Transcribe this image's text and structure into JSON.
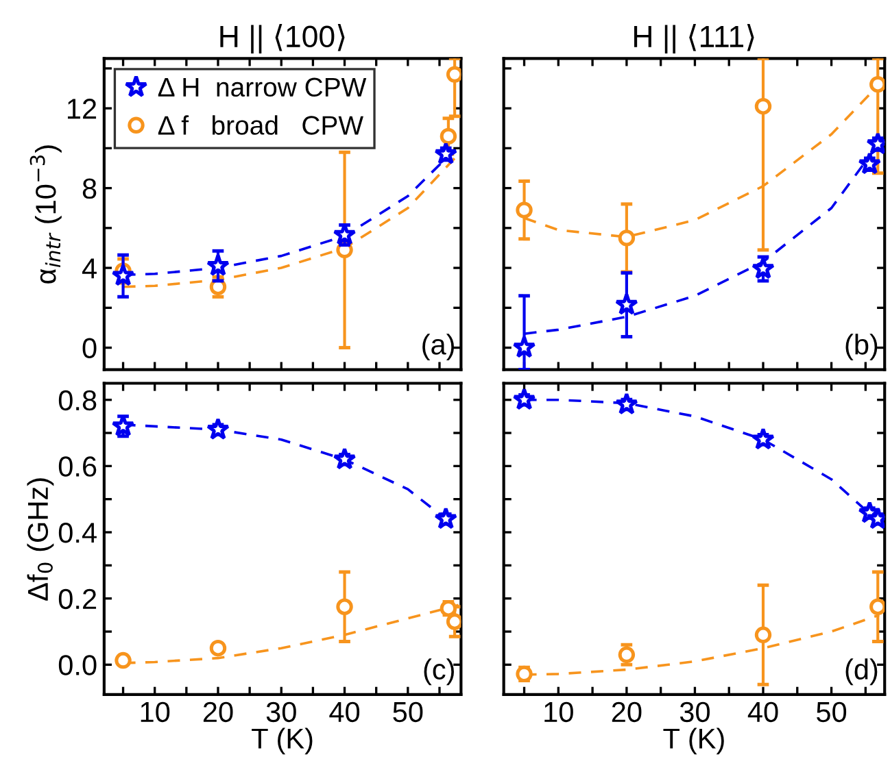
{
  "chart_data": [
    {
      "type": "scatter",
      "title": "H || ⟨100⟩",
      "ylabel": "α$_{intr}$ (10$^{−3}$)",
      "xlim": [
        2,
        58.4
      ],
      "ylim": [
        -1.1,
        14.5
      ],
      "xticks": [
        {
          "value": 5,
          "label": null
        },
        {
          "value": 10,
          "label": null
        },
        {
          "value": 15,
          "label": null
        },
        {
          "value": 20,
          "label": null
        },
        {
          "value": 25,
          "label": null
        },
        {
          "value": 30,
          "label": null
        },
        {
          "value": 35,
          "label": null
        },
        {
          "value": 40,
          "label": null
        },
        {
          "value": 45,
          "label": null
        },
        {
          "value": 50,
          "label": null
        },
        {
          "value": 55,
          "label": null
        }
      ],
      "yticks": [
        0,
        {
          "value": 2,
          "label": null
        },
        4,
        {
          "value": 6,
          "label": null
        },
        8,
        {
          "value": 10,
          "label": null
        },
        12,
        {
          "value": 14,
          "label": null
        }
      ],
      "tick_labels": "y",
      "legend": "top left",
      "annotations": [
        {
          "text": "(a)"
        }
      ],
      "series": [
        {
          "type": "line",
          "color": "#0000ee",
          "line_style": "dashed",
          "marker": "none",
          "x": [
            5,
            10,
            20,
            30,
            40,
            50,
            57
          ],
          "values": [
            3.65,
            3.7,
            4.0,
            4.6,
            5.6,
            7.6,
            9.8
          ]
        },
        {
          "type": "line",
          "color": "#f7941d",
          "line_style": "dashed",
          "marker": "none",
          "x": [
            5,
            10,
            20,
            30,
            40,
            50,
            58
          ],
          "values": [
            3.05,
            3.1,
            3.4,
            4.0,
            5.0,
            7.0,
            9.7
          ]
        },
        {
          "name": "Δ H  narrow CPW",
          "color": "#0000ee",
          "marker": "star",
          "x": [
            5,
            20,
            40,
            56
          ],
          "values": [
            3.6,
            4.1,
            5.65,
            9.7
          ],
          "errors": [
            1.05,
            0.75,
            0.5,
            0.3
          ]
        },
        {
          "name": "Δ f   broad   CPW",
          "color": "#f7941d",
          "marker": "circle",
          "x": [
            5,
            20,
            40,
            56.4,
            57.4
          ],
          "values": [
            3.85,
            3.05,
            4.9,
            10.6,
            13.7
          ],
          "errors": [
            0.6,
            0.5,
            4.9,
            0.9,
            [
              11.6,
              14.5
            ]
          ]
        }
      ]
    },
    {
      "type": "scatter",
      "title": "H || ⟨111⟩",
      "xlim": [
        2,
        57.8
      ],
      "ylim": [
        -1.1,
        14.5
      ],
      "xticks": [
        {
          "value": 5,
          "label": null
        },
        {
          "value": 10,
          "label": null
        },
        {
          "value": 15,
          "label": null
        },
        {
          "value": 20,
          "label": null
        },
        {
          "value": 25,
          "label": null
        },
        {
          "value": 30,
          "label": null
        },
        {
          "value": 35,
          "label": null
        },
        {
          "value": 40,
          "label": null
        },
        {
          "value": 45,
          "label": null
        },
        {
          "value": 50,
          "label": null
        },
        {
          "value": 55,
          "label": null
        }
      ],
      "yticks": [
        {
          "value": 0,
          "label": null
        },
        {
          "value": 2,
          "label": null
        },
        {
          "value": 4,
          "label": null
        },
        {
          "value": 6,
          "label": null
        },
        {
          "value": 8,
          "label": null
        },
        {
          "value": 10,
          "label": null
        },
        {
          "value": 12,
          "label": null
        },
        {
          "value": 14,
          "label": null
        }
      ],
      "tick_labels": false,
      "annotations": [
        {
          "text": "(b)"
        }
      ],
      "series": [
        {
          "type": "line",
          "color": "#0000ee",
          "line_style": "dashed",
          "marker": "none",
          "x": [
            5,
            10,
            20,
            30,
            40,
            50,
            57.5
          ],
          "values": [
            0.7,
            0.9,
            1.55,
            2.6,
            4.3,
            7.0,
            10.5
          ]
        },
        {
          "type": "line",
          "color": "#f7941d",
          "line_style": "dashed",
          "marker": "none",
          "x": [
            5,
            10,
            20,
            30,
            40,
            50,
            57
          ],
          "values": [
            6.5,
            5.9,
            5.55,
            6.4,
            8.1,
            10.7,
            13.2
          ]
        },
        {
          "color": "#0000ee",
          "marker": "star",
          "x": [
            5,
            20,
            40,
            55.6,
            56.8
          ],
          "values": [
            0.0,
            2.15,
            3.95,
            9.2,
            10.2
          ],
          "errors": [
            [
              -1.1,
              2.6
            ],
            1.6,
            0.6,
            0.3,
            0.3
          ]
        },
        {
          "color": "#f7941d",
          "marker": "circle",
          "x": [
            5,
            20,
            40,
            56.8
          ],
          "values": [
            6.9,
            5.5,
            12.1,
            13.2
          ],
          "errors": [
            1.45,
            1.7,
            [
              4.9,
              14.5
            ],
            [
              8.75,
              14.5
            ]
          ]
        }
      ]
    },
    {
      "type": "scatter",
      "xlabel": "T (K)",
      "ylabel": "Δf$_{0}$ (GHz)",
      "xlim": [
        2,
        58.4
      ],
      "ylim": [
        -0.09,
        0.85
      ],
      "xticks": [
        {
          "value": 5,
          "label": null
        },
        10,
        {
          "value": 15,
          "label": null
        },
        20,
        {
          "value": 25,
          "label": null
        },
        30,
        {
          "value": 35,
          "label": null
        },
        40,
        {
          "value": 45,
          "label": null
        },
        50,
        {
          "value": 55,
          "label": null
        }
      ],
      "yticks": [
        {
          "value": 0,
          "label": "0.0"
        },
        {
          "value": 0.1,
          "label": null
        },
        0.2,
        {
          "value": 0.3,
          "label": null
        },
        0.4,
        {
          "value": 0.5,
          "label": null
        },
        0.6,
        {
          "value": 0.7,
          "label": null
        },
        0.8
      ],
      "annotations": [
        {
          "text": "(c)"
        }
      ],
      "series": [
        {
          "type": "line",
          "color": "#0000ee",
          "line_style": "dashed",
          "marker": "none",
          "x": [
            5,
            10,
            20,
            30,
            40,
            50,
            56
          ],
          "values": [
            0.725,
            0.72,
            0.71,
            0.68,
            0.62,
            0.53,
            0.44
          ]
        },
        {
          "type": "line",
          "color": "#f7941d",
          "line_style": "dashed",
          "marker": "none",
          "x": [
            5,
            10,
            20,
            30,
            40,
            50,
            58
          ],
          "values": [
            0.005,
            0.008,
            0.02,
            0.05,
            0.09,
            0.14,
            0.18
          ]
        },
        {
          "color": "#0000ee",
          "marker": "star",
          "x": [
            5,
            20,
            40,
            56
          ],
          "values": [
            0.72,
            0.71,
            0.62,
            0.44
          ],
          "errors": [
            0.03,
            0.015,
            0.015,
            0.015
          ]
        },
        {
          "color": "#f7941d",
          "marker": "circle",
          "x": [
            5,
            20,
            40,
            56.4,
            57.4
          ],
          "values": [
            0.013,
            0.05,
            0.175,
            0.17,
            0.13
          ],
          "errors": [
            0.01,
            0.01,
            0.105,
            0.02,
            0.045
          ]
        }
      ]
    },
    {
      "type": "scatter",
      "xlabel": "T (K)",
      "xlim": [
        2,
        57.8
      ],
      "ylim": [
        -0.09,
        0.85
      ],
      "xticks": [
        {
          "value": 5,
          "label": null
        },
        10,
        {
          "value": 15,
          "label": null
        },
        20,
        {
          "value": 25,
          "label": null
        },
        30,
        {
          "value": 35,
          "label": null
        },
        40,
        {
          "value": 45,
          "label": null
        },
        50,
        {
          "value": 55,
          "label": null
        }
      ],
      "yticks": [
        {
          "value": 0,
          "label": null
        },
        {
          "value": 0.1,
          "label": null
        },
        {
          "value": 0.2,
          "label": null
        },
        {
          "value": 0.3,
          "label": null
        },
        {
          "value": 0.4,
          "label": null
        },
        {
          "value": 0.5,
          "label": null
        },
        {
          "value": 0.6,
          "label": null
        },
        {
          "value": 0.7,
          "label": null
        },
        {
          "value": 0.8,
          "label": null
        }
      ],
      "tick_labels": "x",
      "annotations": [
        {
          "text": "(d)"
        }
      ],
      "series": [
        {
          "type": "line",
          "color": "#0000ee",
          "line_style": "dashed",
          "marker": "none",
          "x": [
            5,
            10,
            20,
            30,
            40,
            50,
            57
          ],
          "values": [
            0.8,
            0.8,
            0.79,
            0.75,
            0.68,
            0.56,
            0.43
          ]
        },
        {
          "type": "line",
          "color": "#f7941d",
          "line_style": "dashed",
          "marker": "none",
          "x": [
            5,
            10,
            20,
            30,
            40,
            50,
            57
          ],
          "values": [
            -0.03,
            -0.028,
            -0.015,
            0.01,
            0.05,
            0.1,
            0.15
          ]
        },
        {
          "color": "#0000ee",
          "marker": "star",
          "x": [
            5,
            20,
            40,
            55.6,
            56.8
          ],
          "values": [
            0.8,
            0.786,
            0.68,
            0.458,
            0.44
          ],
          "errors": [
            0.015,
            0.015,
            0.015,
            0.015,
            0.015
          ]
        },
        {
          "color": "#f7941d",
          "marker": "circle",
          "x": [
            5,
            20,
            40,
            56.8
          ],
          "values": [
            -0.028,
            0.03,
            0.09,
            0.175
          ],
          "errors": [
            0.02,
            0.03,
            0.15,
            0.105
          ]
        }
      ]
    }
  ]
}
